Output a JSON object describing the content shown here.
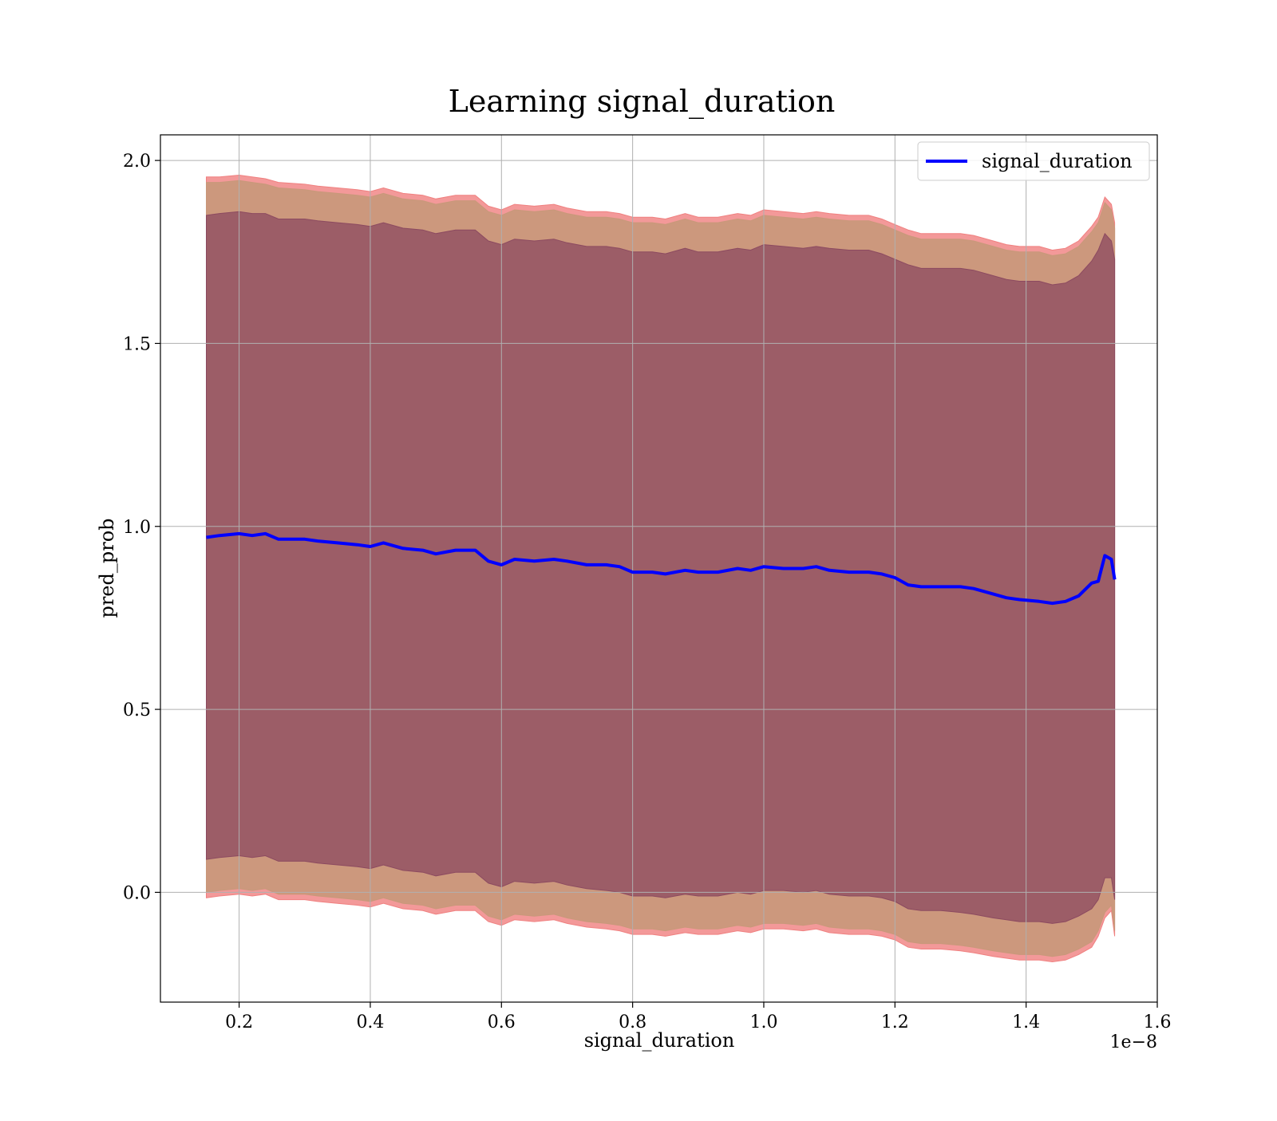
{
  "chart_data": {
    "type": "line",
    "title": "Learning signal_duration",
    "xlabel": "signal_duration",
    "ylabel": "pred_prob",
    "x_offset_label": "1e−8",
    "xlim": [
      0.08,
      1.6
    ],
    "ylim": [
      -0.3,
      2.07
    ],
    "xticks": [
      0.2,
      0.4,
      0.6,
      0.8,
      1.0,
      1.2,
      1.4,
      1.6
    ],
    "xtick_labels": [
      "0.2",
      "0.4",
      "0.6",
      "0.8",
      "1.0",
      "1.2",
      "1.4",
      "1.6"
    ],
    "yticks": [
      0.0,
      0.5,
      1.0,
      1.5,
      2.0
    ],
    "ytick_labels": [
      "0.0",
      "0.5",
      "1.0",
      "1.5",
      "2.0"
    ],
    "grid": true,
    "legend": {
      "position": "upper-right",
      "entries": [
        "signal_duration"
      ]
    },
    "series": [
      {
        "name": "signal_duration",
        "color": "#0000ff",
        "x": [
          0.15,
          0.17,
          0.2,
          0.22,
          0.24,
          0.26,
          0.3,
          0.32,
          0.35,
          0.38,
          0.4,
          0.42,
          0.45,
          0.48,
          0.5,
          0.53,
          0.56,
          0.58,
          0.6,
          0.62,
          0.65,
          0.68,
          0.7,
          0.73,
          0.76,
          0.78,
          0.8,
          0.83,
          0.85,
          0.88,
          0.9,
          0.93,
          0.96,
          0.98,
          1.0,
          1.03,
          1.06,
          1.08,
          1.1,
          1.13,
          1.16,
          1.18,
          1.2,
          1.22,
          1.24,
          1.27,
          1.3,
          1.32,
          1.35,
          1.37,
          1.39,
          1.42,
          1.44,
          1.46,
          1.48,
          1.5,
          1.51,
          1.52,
          1.53,
          1.535
        ],
        "values": [
          0.97,
          0.975,
          0.98,
          0.975,
          0.98,
          0.965,
          0.965,
          0.96,
          0.955,
          0.95,
          0.945,
          0.955,
          0.94,
          0.935,
          0.925,
          0.935,
          0.935,
          0.905,
          0.895,
          0.91,
          0.905,
          0.91,
          0.905,
          0.895,
          0.895,
          0.89,
          0.875,
          0.875,
          0.87,
          0.88,
          0.875,
          0.875,
          0.885,
          0.88,
          0.89,
          0.885,
          0.885,
          0.89,
          0.88,
          0.875,
          0.875,
          0.87,
          0.86,
          0.84,
          0.835,
          0.835,
          0.835,
          0.83,
          0.815,
          0.805,
          0.8,
          0.795,
          0.79,
          0.795,
          0.81,
          0.845,
          0.85,
          0.92,
          0.91,
          0.855
        ]
      }
    ],
    "bands": [
      {
        "name": "outer band",
        "color": "#f08080",
        "upper": [
          1.955,
          1.955,
          1.96,
          1.955,
          1.95,
          1.94,
          1.935,
          1.93,
          1.925,
          1.92,
          1.915,
          1.925,
          1.91,
          1.905,
          1.895,
          1.905,
          1.905,
          1.875,
          1.865,
          1.88,
          1.875,
          1.88,
          1.87,
          1.86,
          1.86,
          1.855,
          1.845,
          1.845,
          1.84,
          1.855,
          1.845,
          1.845,
          1.855,
          1.85,
          1.865,
          1.86,
          1.855,
          1.86,
          1.855,
          1.85,
          1.85,
          1.84,
          1.825,
          1.81,
          1.8,
          1.8,
          1.8,
          1.795,
          1.78,
          1.77,
          1.765,
          1.765,
          1.755,
          1.76,
          1.78,
          1.82,
          1.845,
          1.9,
          1.88,
          1.83
        ],
        "lower": [
          -0.015,
          -0.01,
          -0.005,
          -0.01,
          -0.005,
          -0.02,
          -0.02,
          -0.025,
          -0.03,
          -0.035,
          -0.04,
          -0.03,
          -0.045,
          -0.05,
          -0.06,
          -0.05,
          -0.05,
          -0.08,
          -0.09,
          -0.075,
          -0.08,
          -0.075,
          -0.085,
          -0.095,
          -0.1,
          -0.105,
          -0.115,
          -0.115,
          -0.12,
          -0.11,
          -0.115,
          -0.115,
          -0.105,
          -0.11,
          -0.1,
          -0.1,
          -0.105,
          -0.1,
          -0.11,
          -0.115,
          -0.115,
          -0.12,
          -0.13,
          -0.15,
          -0.155,
          -0.155,
          -0.16,
          -0.165,
          -0.175,
          -0.18,
          -0.185,
          -0.185,
          -0.19,
          -0.185,
          -0.17,
          -0.15,
          -0.12,
          -0.07,
          -0.05,
          -0.12
        ]
      },
      {
        "name": "middle band",
        "color": "#c8987a",
        "upper": [
          1.94,
          1.94,
          1.945,
          1.94,
          1.935,
          1.925,
          1.92,
          1.915,
          1.91,
          1.905,
          1.9,
          1.91,
          1.895,
          1.89,
          1.88,
          1.89,
          1.89,
          1.86,
          1.85,
          1.865,
          1.86,
          1.865,
          1.855,
          1.845,
          1.845,
          1.84,
          1.83,
          1.83,
          1.825,
          1.84,
          1.83,
          1.83,
          1.84,
          1.835,
          1.85,
          1.845,
          1.84,
          1.845,
          1.84,
          1.835,
          1.835,
          1.825,
          1.81,
          1.795,
          1.785,
          1.785,
          1.785,
          1.78,
          1.765,
          1.755,
          1.75,
          1.75,
          1.74,
          1.745,
          1.765,
          1.805,
          1.83,
          1.885,
          1.865,
          1.815
        ],
        "lower": [
          0.0,
          0.005,
          0.01,
          0.005,
          0.01,
          -0.005,
          -0.005,
          -0.01,
          -0.015,
          -0.02,
          -0.025,
          -0.015,
          -0.03,
          -0.035,
          -0.045,
          -0.035,
          -0.035,
          -0.065,
          -0.075,
          -0.06,
          -0.065,
          -0.06,
          -0.07,
          -0.08,
          -0.085,
          -0.09,
          -0.1,
          -0.1,
          -0.105,
          -0.095,
          -0.1,
          -0.1,
          -0.09,
          -0.095,
          -0.085,
          -0.085,
          -0.09,
          -0.085,
          -0.095,
          -0.1,
          -0.1,
          -0.105,
          -0.115,
          -0.135,
          -0.14,
          -0.14,
          -0.145,
          -0.15,
          -0.16,
          -0.165,
          -0.17,
          -0.17,
          -0.175,
          -0.17,
          -0.155,
          -0.135,
          -0.105,
          -0.055,
          -0.035,
          -0.105
        ]
      },
      {
        "name": "inner band",
        "color": "#8c4a60",
        "upper": [
          1.85,
          1.855,
          1.86,
          1.855,
          1.855,
          1.84,
          1.84,
          1.835,
          1.83,
          1.825,
          1.82,
          1.83,
          1.815,
          1.81,
          1.8,
          1.81,
          1.81,
          1.78,
          1.77,
          1.785,
          1.78,
          1.785,
          1.775,
          1.765,
          1.765,
          1.76,
          1.75,
          1.75,
          1.745,
          1.76,
          1.75,
          1.75,
          1.76,
          1.755,
          1.77,
          1.765,
          1.76,
          1.765,
          1.76,
          1.755,
          1.755,
          1.745,
          1.73,
          1.715,
          1.705,
          1.705,
          1.705,
          1.7,
          1.685,
          1.675,
          1.67,
          1.67,
          1.66,
          1.665,
          1.685,
          1.725,
          1.755,
          1.8,
          1.78,
          1.73
        ],
        "lower": [
          0.09,
          0.095,
          0.1,
          0.095,
          0.1,
          0.085,
          0.085,
          0.08,
          0.075,
          0.07,
          0.065,
          0.075,
          0.06,
          0.055,
          0.045,
          0.055,
          0.055,
          0.025,
          0.015,
          0.03,
          0.025,
          0.03,
          0.02,
          0.01,
          0.005,
          0.0,
          -0.01,
          -0.01,
          -0.015,
          -0.005,
          -0.01,
          -0.01,
          0.0,
          -0.005,
          0.005,
          0.005,
          0.0,
          0.005,
          -0.005,
          -0.01,
          -0.01,
          -0.015,
          -0.025,
          -0.045,
          -0.05,
          -0.05,
          -0.055,
          -0.06,
          -0.07,
          -0.075,
          -0.08,
          -0.08,
          -0.085,
          -0.08,
          -0.065,
          -0.045,
          -0.02,
          0.04,
          0.04,
          -0.02
        ]
      }
    ]
  }
}
